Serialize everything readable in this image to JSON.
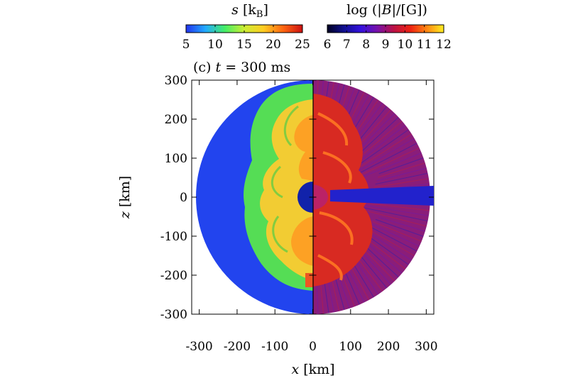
{
  "chart_data": {
    "type": "heatmap",
    "panel_label": "(c)",
    "time_prefix": "t",
    "time_value": "= 300 ms",
    "xlabel_var": "x",
    "xlabel_unit": "[km]",
    "ylabel_var": "z",
    "ylabel_unit": "[km]",
    "xlim": [
      -320,
      320
    ],
    "ylim": [
      -300,
      300
    ],
    "x_ticks": [
      -300,
      -200,
      -100,
      0,
      100,
      200,
      300
    ],
    "x_tick_labels": [
      "-300",
      "-200",
      "-100",
      "0",
      "100",
      "200",
      "300"
    ],
    "y_ticks": [
      300,
      200,
      100,
      0,
      -100,
      -200,
      -300
    ],
    "y_tick_labels": [
      "300",
      "200",
      "100",
      "0",
      "-100",
      "-200",
      "-300"
    ],
    "domain_radius_km": 300,
    "left_half": {
      "quantity": "entropy",
      "colorbar_label": "s [k_B]",
      "colorbar_label_var": "s",
      "colorbar_label_unit_open": "[k",
      "colorbar_label_unit_sub": "B",
      "colorbar_label_unit_close": "]",
      "range": [
        5,
        25
      ],
      "tick_labels": [
        "5",
        "10",
        "15",
        "20",
        "25"
      ],
      "colors": [
        "#2233ee",
        "#22aaff",
        "#44ee66",
        "#ccee33",
        "#ffcc22",
        "#ff6611",
        "#cc1111"
      ]
    },
    "right_half": {
      "quantity": "log magnetic field",
      "colorbar_label": "log (|B|/[G])",
      "colorbar_label_pre": "log (|",
      "colorbar_label_var": "B",
      "colorbar_label_post": "|/[G])",
      "range": [
        6,
        12
      ],
      "tick_labels": [
        "6",
        "7",
        "8",
        "9",
        "10",
        "11",
        "12"
      ],
      "colors": [
        "#000022",
        "#101090",
        "#3311dd",
        "#7711aa",
        "#bb1144",
        "#ee2211",
        "#ff8811",
        "#ffee22"
      ]
    }
  }
}
